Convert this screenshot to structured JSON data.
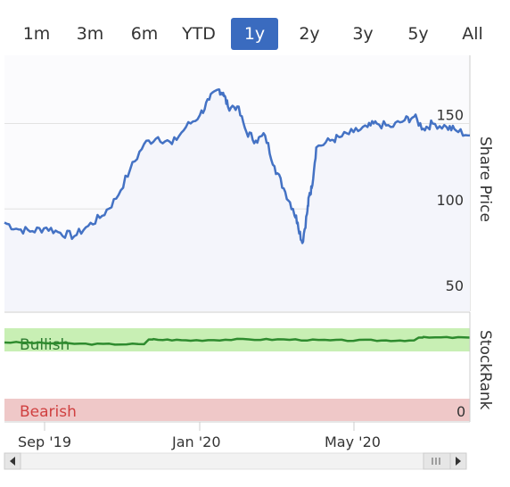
{
  "range_selector": {
    "buttons": [
      "1m",
      "3m",
      "6m",
      "YTD",
      "1y",
      "2y",
      "3y",
      "5y",
      "All"
    ],
    "selected": "1y"
  },
  "colors": {
    "price_line": "#4472c4",
    "price_area": "#f4f5fb",
    "rank_line": "#2e8b2e",
    "bullish_band": "#c8efb4",
    "bearish_band": "#efc8c8",
    "bullish_text": "#2e7d32",
    "bearish_text": "#d04040",
    "accent": "#3a6bbf"
  },
  "chart_data": [
    {
      "type": "line",
      "ylabel": "Share Price",
      "yticks": [
        50,
        100,
        150
      ],
      "ylim": [
        40,
        190
      ],
      "axis_position": "right",
      "x": [
        0,
        0.03,
        0.06,
        0.09,
        0.12,
        0.15,
        0.18,
        0.21,
        0.24,
        0.27,
        0.3,
        0.33,
        0.36,
        0.39,
        0.42,
        0.44,
        0.46,
        0.47,
        0.48,
        0.5,
        0.52,
        0.54,
        0.56,
        0.58,
        0.6,
        0.62,
        0.63,
        0.64,
        0.65,
        0.655,
        0.66,
        0.67,
        0.7,
        0.72,
        0.75,
        0.78,
        0.8,
        0.83,
        0.86,
        0.88,
        0.9,
        0.92,
        0.95,
        0.97,
        1.0
      ],
      "values": [
        92,
        88,
        87,
        89,
        86,
        84,
        90,
        96,
        106,
        123,
        138,
        142,
        138,
        148,
        155,
        164,
        170,
        168,
        160,
        160,
        145,
        140,
        143,
        125,
        112,
        100,
        92,
        80,
        97,
        108,
        112,
        136,
        140,
        142,
        145,
        148,
        150,
        148,
        152,
        154,
        147,
        150,
        148,
        146,
        143
      ],
      "grid": true
    },
    {
      "type": "line",
      "ylabel": "StockRank",
      "yticks": [
        0
      ],
      "bands": [
        "Bullish",
        "Bearish"
      ],
      "x": [
        0,
        0.1,
        0.2,
        0.3,
        0.31,
        0.32,
        0.4,
        0.5,
        0.6,
        0.7,
        0.8,
        0.88,
        0.89,
        0.9,
        1.0
      ],
      "values": [
        85,
        84,
        83,
        83,
        88,
        88,
        87,
        88,
        88,
        87,
        87,
        87,
        90,
        90,
        90
      ],
      "ylim": [
        0,
        100
      ]
    }
  ],
  "navigator": {
    "xticks": [
      "Sep '19",
      "Jan '20",
      "May '20"
    ],
    "scroll_handle": "grip-icon"
  }
}
